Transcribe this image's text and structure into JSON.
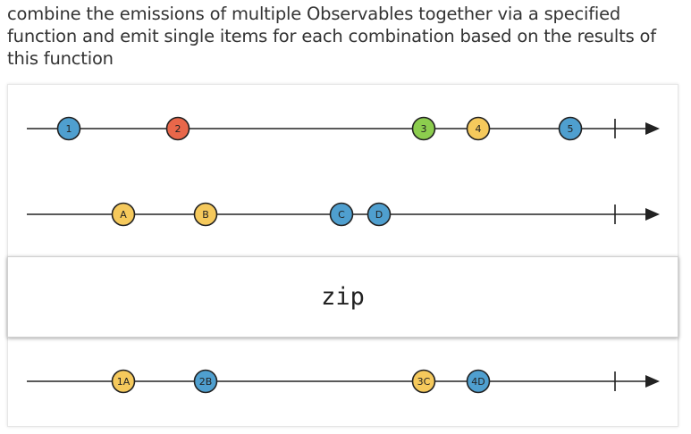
{
  "description": "combine the emissions of multiple Observables together via a specified function and emit single items for each combination based on the results of this function",
  "operator": "zip",
  "colors": {
    "blue": "#4f9fcf",
    "red": "#e8674a",
    "green": "#8ccd4e",
    "yellow": "#f5c95c"
  },
  "timelines": [
    {
      "name": "input-1",
      "marbles": [
        {
          "label": "1",
          "color": "blue"
        },
        {
          "label": "2",
          "color": "red"
        },
        {
          "label": "3",
          "color": "green"
        },
        {
          "label": "4",
          "color": "yellow"
        },
        {
          "label": "5",
          "color": "blue"
        }
      ]
    },
    {
      "name": "input-2",
      "marbles": [
        {
          "label": "A",
          "color": "yellow"
        },
        {
          "label": "B",
          "color": "yellow"
        },
        {
          "label": "C",
          "color": "blue"
        },
        {
          "label": "D",
          "color": "blue"
        }
      ]
    },
    {
      "name": "output",
      "marbles": [
        {
          "label": "1A",
          "color": "yellow"
        },
        {
          "label": "2B",
          "color": "blue"
        },
        {
          "label": "3C",
          "color": "yellow"
        },
        {
          "label": "4D",
          "color": "blue"
        }
      ]
    }
  ]
}
